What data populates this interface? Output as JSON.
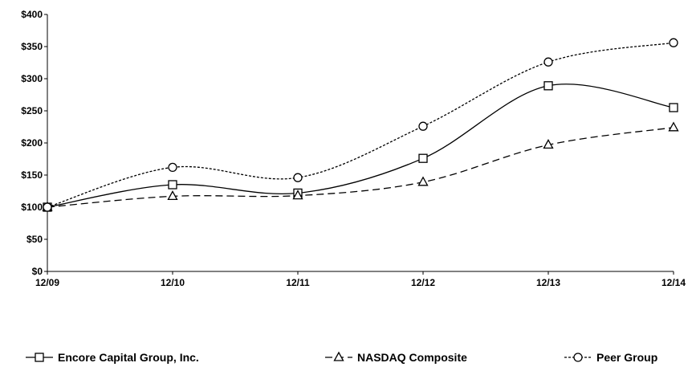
{
  "chart_data": {
    "type": "line",
    "title": "",
    "xlabel": "",
    "ylabel": "",
    "categories": [
      "12/09",
      "12/10",
      "12/11",
      "12/12",
      "12/13",
      "12/14"
    ],
    "y_ticks": [
      "$0",
      "$50",
      "$100",
      "$150",
      "$200",
      "$250",
      "$300",
      "$350",
      "$400"
    ],
    "ylim": [
      0,
      400
    ],
    "grid": false,
    "legend_position": "bottom",
    "series": [
      {
        "name": "Encore Capital Group, Inc.",
        "marker": "square",
        "line_style": "solid",
        "color": "#000000",
        "values": [
          100,
          135,
          122,
          176,
          289,
          255
        ]
      },
      {
        "name": "NASDAQ Composite",
        "marker": "triangle",
        "line_style": "dashed",
        "color": "#000000",
        "values": [
          100,
          117,
          118,
          139,
          197,
          224
        ]
      },
      {
        "name": "Peer Group",
        "marker": "circle",
        "line_style": "dotted",
        "color": "#000000",
        "values": [
          100,
          162,
          146,
          226,
          326,
          356
        ]
      }
    ]
  }
}
